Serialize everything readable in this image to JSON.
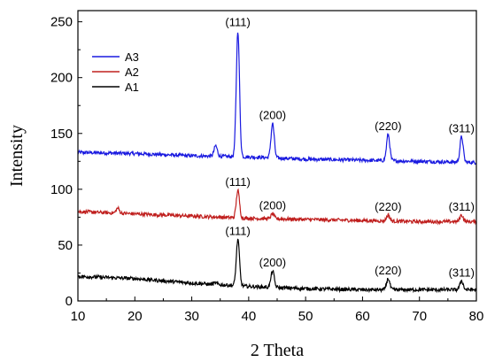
{
  "chart_data": {
    "type": "line",
    "xlabel": "2 Theta",
    "ylabel": "Intensity",
    "xlim": [
      10,
      80
    ],
    "ylim": [
      0,
      260
    ],
    "xticks": [
      10,
      20,
      30,
      40,
      50,
      60,
      70,
      80
    ],
    "yticks": [
      0,
      50,
      100,
      150,
      200,
      250
    ],
    "legend_position": "top-left",
    "series": [
      {
        "name": "A3",
        "color": "#1a1ae0",
        "baseline_points": [
          [
            10,
            133
          ],
          [
            20,
            132
          ],
          [
            30,
            130
          ],
          [
            40,
            129
          ],
          [
            50,
            127
          ],
          [
            60,
            126
          ],
          [
            70,
            125
          ],
          [
            80,
            124
          ]
        ],
        "peaks": [
          {
            "x": 34.2,
            "y": 139,
            "label": ""
          },
          {
            "x": 38.1,
            "y": 242,
            "label": "(111)"
          },
          {
            "x": 44.2,
            "y": 159,
            "label": "(200)"
          },
          {
            "x": 64.5,
            "y": 149,
            "label": "(220)"
          },
          {
            "x": 77.4,
            "y": 147,
            "label": "(311)"
          }
        ]
      },
      {
        "name": "A2",
        "color": "#c0201f",
        "baseline_points": [
          [
            10,
            80
          ],
          [
            20,
            78
          ],
          [
            30,
            76
          ],
          [
            40,
            74
          ],
          [
            50,
            73
          ],
          [
            60,
            72
          ],
          [
            70,
            71
          ],
          [
            80,
            71
          ]
        ],
        "peaks": [
          {
            "x": 17,
            "y": 83,
            "label": ""
          },
          {
            "x": 38.1,
            "y": 99,
            "label": "(111)"
          },
          {
            "x": 44.2,
            "y": 78,
            "label": "(200)"
          },
          {
            "x": 64.5,
            "y": 77,
            "label": "(220)"
          },
          {
            "x": 77.4,
            "y": 77,
            "label": "(311)"
          }
        ]
      },
      {
        "name": "A1",
        "color": "#000000",
        "baseline_points": [
          [
            10,
            22
          ],
          [
            20,
            20
          ],
          [
            30,
            16
          ],
          [
            40,
            13
          ],
          [
            50,
            11
          ],
          [
            60,
            10
          ],
          [
            70,
            10
          ],
          [
            80,
            10
          ]
        ],
        "peaks": [
          {
            "x": 34.2,
            "y": 16,
            "label": ""
          },
          {
            "x": 38.1,
            "y": 55,
            "label": "(111)"
          },
          {
            "x": 44.2,
            "y": 27,
            "label": "(200)"
          },
          {
            "x": 64.5,
            "y": 20,
            "label": "(220)"
          },
          {
            "x": 77.4,
            "y": 18,
            "label": "(311)"
          }
        ]
      }
    ]
  }
}
